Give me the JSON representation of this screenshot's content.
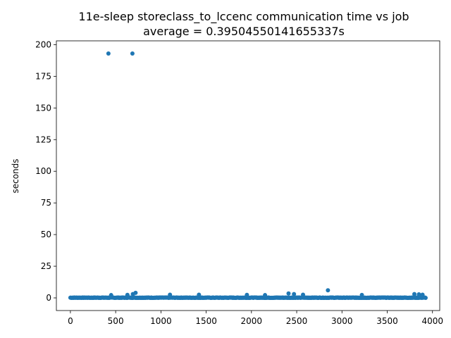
{
  "chart_data": {
    "type": "scatter",
    "title_line1": "11e-sleep storeclass_to_lccenc communication time vs job",
    "title_line2": "average = 0.39504550141655337s",
    "xlabel": "",
    "ylabel": "seconds",
    "xlim": [
      -155,
      4080
    ],
    "ylim": [
      -10,
      203
    ],
    "xticks": [
      0,
      500,
      1000,
      1500,
      2000,
      2500,
      3000,
      3500,
      4000
    ],
    "yticks": [
      0,
      25,
      50,
      75,
      100,
      125,
      150,
      175,
      200
    ],
    "grid": false,
    "marker_color": "#1f77b4",
    "outliers": [
      {
        "x": 420,
        "y": 193
      },
      {
        "x": 685,
        "y": 193
      },
      {
        "x": 2845,
        "y": 6
      },
      {
        "x": 720,
        "y": 4
      },
      {
        "x": 2410,
        "y": 3.5
      },
      {
        "x": 3800,
        "y": 3
      },
      {
        "x": 3850,
        "y": 2.8
      },
      {
        "x": 2470,
        "y": 3
      },
      {
        "x": 690,
        "y": 3
      },
      {
        "x": 1100,
        "y": 2.5
      },
      {
        "x": 1420,
        "y": 2.5
      },
      {
        "x": 1950,
        "y": 2.4
      },
      {
        "x": 2150,
        "y": 2.2
      },
      {
        "x": 2570,
        "y": 2.5
      },
      {
        "x": 3220,
        "y": 2.3
      },
      {
        "x": 3890,
        "y": 2.5
      },
      {
        "x": 450,
        "y": 2.2
      },
      {
        "x": 630,
        "y": 2.4
      }
    ],
    "baseline": {
      "x_start": 0,
      "x_end": 3925,
      "step": 6,
      "y_typical": 0.3
    }
  }
}
